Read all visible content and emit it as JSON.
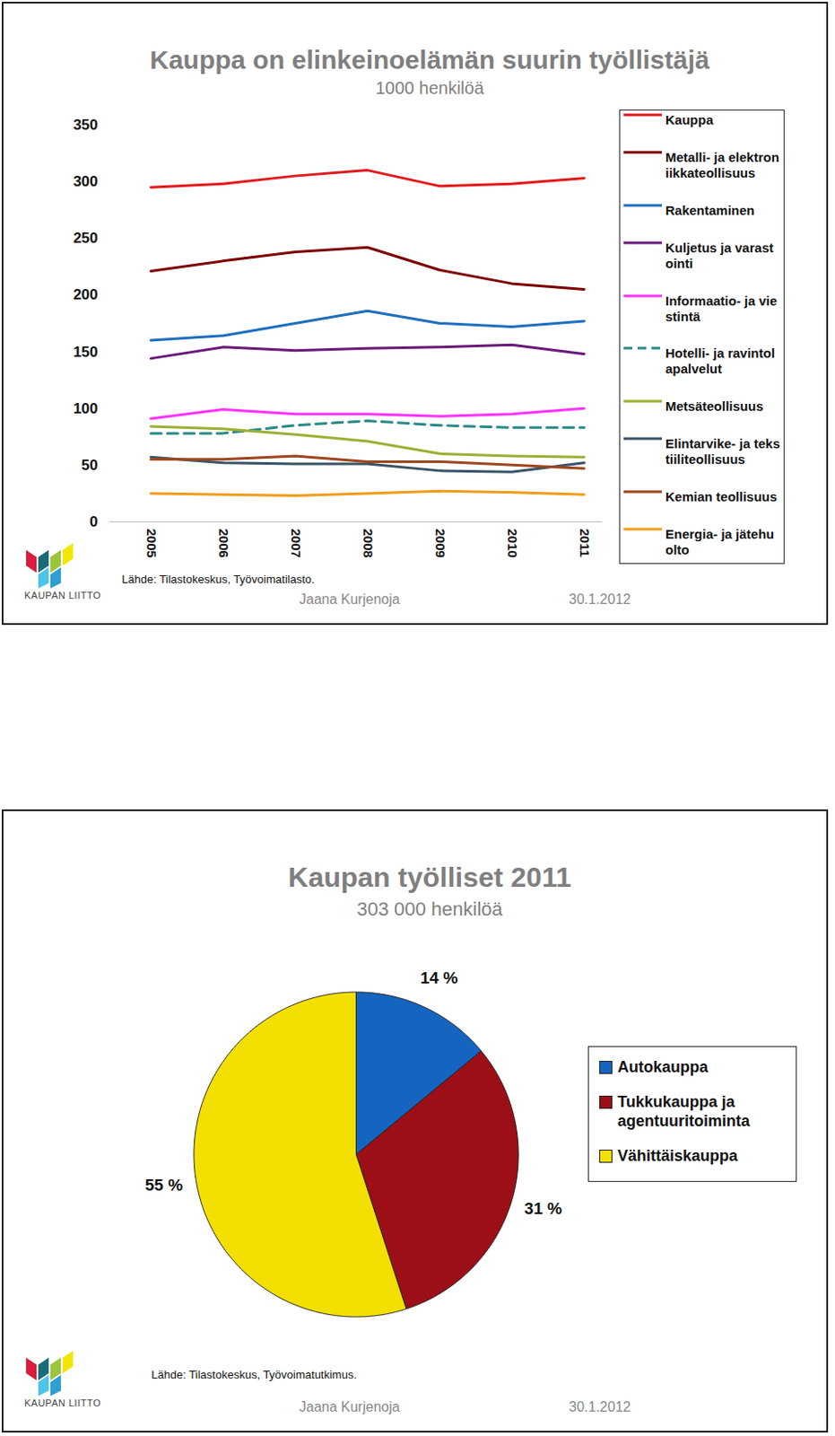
{
  "chart_data": [
    {
      "type": "line",
      "title": "Kauppa on elinkeinoelämän suurin työllistäjä",
      "subtitle": "1000 henkilöä",
      "categories": [
        "2005",
        "2006",
        "2007",
        "2008",
        "2009",
        "2010",
        "2011"
      ],
      "series": [
        {
          "name": "Kauppa",
          "color": "#e31a1c",
          "line_style": "solid",
          "values": [
            295,
            298,
            305,
            310,
            296,
            298,
            303
          ]
        },
        {
          "name": "Metalli- ja elektroniikkateollisuus",
          "color": "#7f0000",
          "line_style": "solid",
          "values": [
            221,
            230,
            238,
            242,
            222,
            210,
            205
          ]
        },
        {
          "name": "Rakentaminen",
          "color": "#1f6fbf",
          "line_style": "solid",
          "values": [
            160,
            164,
            175,
            186,
            175,
            172,
            177
          ]
        },
        {
          "name": "Kuljetus ja varastointi",
          "color": "#6a1b7a",
          "line_style": "solid",
          "values": [
            144,
            154,
            151,
            153,
            154,
            156,
            148
          ]
        },
        {
          "name": "Informaatio- ja viestintä",
          "color": "#ff33ff",
          "line_style": "solid",
          "values": [
            91,
            99,
            95,
            95,
            93,
            95,
            100
          ]
        },
        {
          "name": "Hotelli- ja ravintolapalvelut",
          "color": "#2a8a8a",
          "line_style": "dashed",
          "values": [
            78,
            78,
            85,
            89,
            85,
            83,
            83
          ]
        },
        {
          "name": "Metsäteollisuus",
          "color": "#99b233",
          "line_style": "solid",
          "values": [
            84,
            82,
            77,
            71,
            60,
            58,
            57
          ]
        },
        {
          "name": "Elintarvike- ja tekstiiliteollisuus",
          "color": "#3a5468",
          "line_style": "solid",
          "values": [
            57,
            52,
            51,
            51,
            45,
            44,
            52
          ]
        },
        {
          "name": "Kemian teollisuus",
          "color": "#a0461e",
          "line_style": "solid",
          "values": [
            55,
            55,
            58,
            53,
            53,
            50,
            47
          ]
        },
        {
          "name": "Energia- ja jätehuolto",
          "color": "#f39c1c",
          "line_style": "solid",
          "values": [
            25,
            24,
            23,
            25,
            27,
            26,
            24
          ]
        }
      ],
      "ylim": [
        0,
        350
      ],
      "yticks": [
        0,
        50,
        100,
        150,
        200,
        250,
        300,
        350
      ],
      "grid": false,
      "legend": "right",
      "source": "Lähde: Tilastokeskus, Työvoimatilasto.",
      "footer": {
        "author": "Jaana Kurjenoja",
        "date": "30.1.2012"
      },
      "logo": "KAUPAN LIITTO"
    },
    {
      "type": "pie",
      "title": "Kaupan työlliset 2011",
      "subtitle": "303 000 henkilöä",
      "categories": [
        "Autokauppa",
        "Tukkukauppa ja agentuuritoiminta",
        "Vähittäiskauppa"
      ],
      "values": [
        14,
        31,
        55
      ],
      "value_labels": [
        "14 %",
        "31 %",
        "55 %"
      ],
      "colors": [
        "#1565c0",
        "#9c0f16",
        "#f4e000"
      ],
      "data_labels": true,
      "legend": "right",
      "source": "Lähde: Tilastokeskus, Työvoimatutkimus.",
      "footer": {
        "author": "Jaana Kurjenoja",
        "date": "30.1.2012"
      },
      "logo": "KAUPAN LIITTO"
    }
  ]
}
